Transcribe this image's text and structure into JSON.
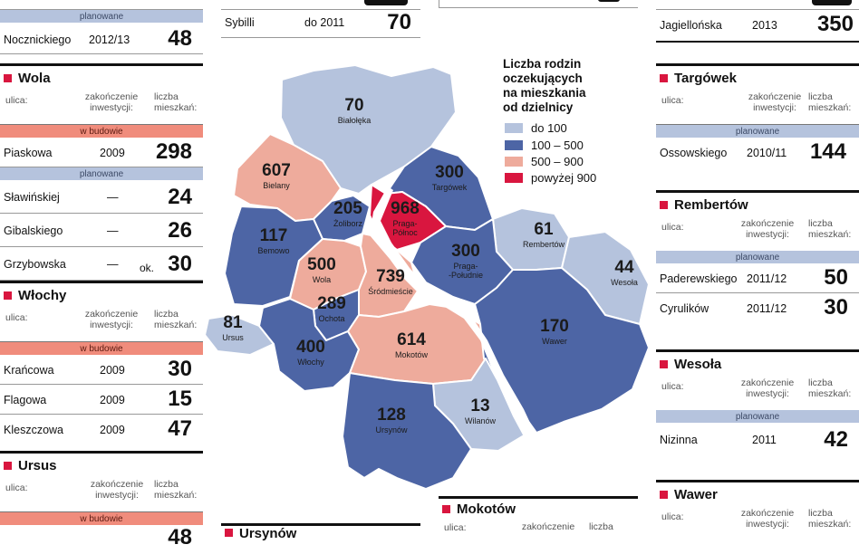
{
  "legend": {
    "title_lines": [
      "Liczba rodzin",
      "oczekujących",
      "na mieszkania",
      "od dzielnicy"
    ],
    "items": [
      {
        "label": "do 100",
        "color": "#b5c3dd"
      },
      {
        "label": "100 – 500",
        "color": "#4d65a5"
      },
      {
        "label": "500 – 900",
        "color": "#eeab9c"
      },
      {
        "label": "powyżej 900",
        "color": "#d9163f"
      }
    ]
  },
  "districts": [
    {
      "id": "bialoleka",
      "name": "Białołęka",
      "value": "70",
      "color": "#b5c3dd"
    },
    {
      "id": "bielany",
      "name": "Bielany",
      "value": "607",
      "color": "#eeab9c"
    },
    {
      "id": "targowek",
      "name": "Targówek",
      "value": "300",
      "color": "#4d65a5"
    },
    {
      "id": "zoliborz",
      "name": "Żoliborz",
      "value": "205",
      "color": "#4d65a5"
    },
    {
      "id": "praga_polnoc",
      "name": "Praga-Północ",
      "value": "968",
      "color": "#d9163f"
    },
    {
      "id": "bemowo",
      "name": "Bemowo",
      "value": "117",
      "color": "#4d65a5"
    },
    {
      "id": "rembertow",
      "name": "Rembertów",
      "value": "61",
      "color": "#b5c3dd"
    },
    {
      "id": "praga_poludnie",
      "name": "Praga-Południe",
      "value": "300",
      "color": "#4d65a5"
    },
    {
      "id": "wola",
      "name": "Wola",
      "value": "500",
      "color": "#eeab9c"
    },
    {
      "id": "srodmiescie",
      "name": "Śródmieście",
      "value": "739",
      "color": "#eeab9c"
    },
    {
      "id": "wesola",
      "name": "Wesoła",
      "value": "44",
      "color": "#b5c3dd"
    },
    {
      "id": "ochota",
      "name": "Ochota",
      "value": "289",
      "color": "#4d65a5"
    },
    {
      "id": "ursus",
      "name": "Ursus",
      "value": "81",
      "color": "#b5c3dd"
    },
    {
      "id": "wlochy",
      "name": "Włochy",
      "value": "400",
      "color": "#4d65a5"
    },
    {
      "id": "mokotow",
      "name": "Mokotów",
      "value": "614",
      "color": "#eeab9c"
    },
    {
      "id": "wawer",
      "name": "Wawer",
      "value": "170",
      "color": "#4d65a5"
    },
    {
      "id": "wilanow",
      "name": "Wilanów",
      "value": "13",
      "color": "#b5c3dd"
    },
    {
      "id": "ursynow",
      "name": "Ursynów",
      "value": "128",
      "color": "#4d65a5"
    }
  ],
  "labels": {
    "street": "ulica:",
    "completion": [
      "zakończenie",
      "inwestycji:"
    ],
    "residents": [
      "liczba",
      "mieszkań:"
    ],
    "in_progress": "w budowie",
    "planned": "planowane",
    "approx": "ok."
  },
  "top_strips": {
    "left": {
      "street": "Nocznickiego",
      "year": "2012/13",
      "number": "48"
    },
    "middle": {
      "street": "Sybilli",
      "year": "do 2011",
      "number": "70"
    },
    "right": {
      "street": "Jagiellońska",
      "year": "2013",
      "number": "350"
    }
  },
  "panels": {
    "wola": {
      "title": "Wola",
      "rows": [
        {
          "street": "Piaskowa",
          "year": "2009",
          "number": "298"
        },
        {
          "street": "Sławińskiej",
          "year": "—",
          "number": "24"
        },
        {
          "street": "Gibalskiego",
          "year": "—",
          "number": "26"
        },
        {
          "street": "Grzybowska",
          "year": "—",
          "number": "30"
        }
      ]
    },
    "wlochy": {
      "title": "Włochy",
      "rows": [
        {
          "street": "Krańcowa",
          "year": "2009",
          "number": "30"
        },
        {
          "street": "Flagowa",
          "year": "2009",
          "number": "15"
        },
        {
          "street": "Kleszczowa",
          "year": "2009",
          "number": "47"
        }
      ]
    },
    "ursus": {
      "title": "Ursus",
      "rows": [
        {
          "street": "",
          "year": "",
          "number": "48"
        }
      ]
    },
    "targowek": {
      "title": "Targówek",
      "rows": [
        {
          "street": "Ossowskiego",
          "year": "2010/11",
          "number": "144"
        }
      ]
    },
    "rembertow": {
      "title": "Rembertów",
      "rows": [
        {
          "street": "Paderewskiego",
          "year": "2011/12",
          "number": "50"
        },
        {
          "street": "Cyrulików",
          "year": "2011/12",
          "number": "30"
        }
      ]
    },
    "wesola": {
      "title": "Wesoła",
      "rows": [
        {
          "street": "Nizinna",
          "year": "2011",
          "number": "42"
        }
      ]
    },
    "wawer": {
      "title": "Wawer"
    },
    "mokotow": {
      "title": "Mokotów"
    },
    "ursynow": {
      "title": "Ursynów"
    }
  }
}
